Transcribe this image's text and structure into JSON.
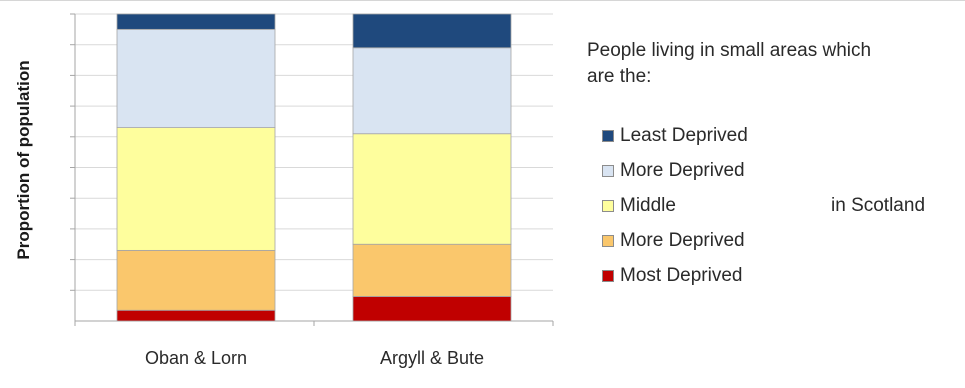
{
  "chart_data": {
    "type": "bar",
    "stacked": true,
    "normalized": true,
    "title": "",
    "xlabel": "",
    "ylabel": "Proportion of population",
    "ylim": [
      0,
      1
    ],
    "grid": true,
    "legend_position": "right",
    "legend_title": "People living in small areas which are the:",
    "legend_suffix": "in Scotland",
    "categories": [
      "Oban & Lorn",
      "Argyll & Bute"
    ],
    "series": [
      {
        "name": "Most Deprived",
        "color": "#c00000",
        "values": [
          0.035,
          0.08
        ]
      },
      {
        "name": "More Deprived",
        "color": "#fac76c",
        "values": [
          0.195,
          0.17
        ]
      },
      {
        "name": "Middle",
        "color": "#fefe9d",
        "values": [
          0.4,
          0.36
        ]
      },
      {
        "name": "More Deprived",
        "color": "#d9e4f2",
        "values": [
          0.32,
          0.28
        ]
      },
      {
        "name": "Least Deprived",
        "color": "#1f497d",
        "values": [
          0.05,
          0.11
        ]
      }
    ]
  }
}
